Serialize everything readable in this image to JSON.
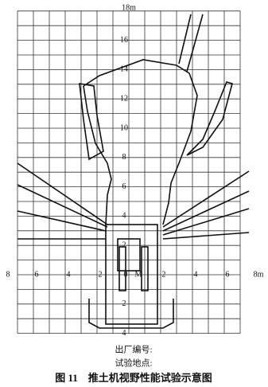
{
  "diagram": {
    "top_label": "18m",
    "y_labels_above": [
      "16",
      "14",
      "12",
      "10",
      "8",
      "6",
      "4",
      "2"
    ],
    "y_labels_below": [
      "2",
      "4"
    ],
    "origin_label": "0",
    "machine_label": "M",
    "x_labels_left": [
      "8",
      "6",
      "4",
      "2"
    ],
    "x_labels_right": [
      "2",
      "4",
      "6",
      "8m"
    ]
  },
  "footer": {
    "line1": "出厂编号:",
    "line2": "试验地点:",
    "caption": "图 11　推土机视野性能试验示意图"
  }
}
